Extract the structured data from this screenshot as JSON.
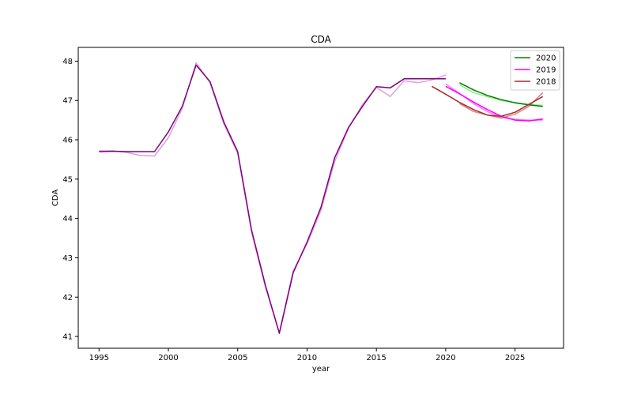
{
  "chart_data": {
    "type": "line",
    "title": "CDA",
    "xlabel": "year",
    "ylabel": "CDA",
    "xlim": [
      1993.5,
      2028.5
    ],
    "ylim": [
      40.7,
      48.35
    ],
    "xticks": [
      1995,
      2000,
      2005,
      2010,
      2015,
      2020,
      2025
    ],
    "yticks": [
      41,
      42,
      43,
      44,
      45,
      46,
      47,
      48
    ],
    "grid": false,
    "legend_position": "top-right",
    "series": [
      {
        "color": "#dda0dd",
        "x": [
          1995,
          1996,
          1997,
          1998,
          1999,
          2000,
          2001,
          2002,
          2003,
          2004,
          2005,
          2006,
          2007,
          2008,
          2009,
          2010,
          2011,
          2012,
          2013,
          2014,
          2015,
          2016,
          2017,
          2018,
          2019,
          2020
        ],
        "y": [
          45.72,
          45.72,
          45.68,
          45.6,
          45.59,
          46.05,
          46.8,
          47.96,
          47.45,
          46.4,
          45.66,
          43.65,
          42.25,
          41.1,
          42.67,
          43.35,
          44.2,
          45.45,
          46.3,
          46.9,
          47.33,
          47.1,
          47.5,
          47.45,
          47.52,
          47.65
        ]
      },
      {
        "color": "#800080",
        "x": [
          1995,
          1996,
          1997,
          1998,
          1999,
          2000,
          2001,
          2002,
          2003,
          2004,
          2005,
          2006,
          2007,
          2008,
          2009,
          2010,
          2011,
          2012,
          2013,
          2014,
          2015,
          2016,
          2017,
          2018,
          2019,
          2020
        ],
        "y": [
          45.7,
          45.71,
          45.7,
          45.7,
          45.7,
          46.2,
          46.85,
          47.9,
          47.48,
          46.45,
          45.7,
          43.7,
          42.3,
          41.08,
          42.62,
          43.4,
          44.28,
          45.55,
          46.32,
          46.85,
          47.35,
          47.32,
          47.55,
          47.55,
          47.55,
          47.55
        ]
      },
      {
        "color": "#90ee90",
        "x": [
          2021,
          2022,
          2023,
          2024,
          2025,
          2026,
          2027
        ],
        "y": [
          47.4,
          47.2,
          47.1,
          47.0,
          46.95,
          46.9,
          46.88
        ]
      },
      {
        "color": "#ff77ff",
        "x": [
          2020,
          2021,
          2022,
          2023,
          2024,
          2025,
          2026,
          2027
        ],
        "y": [
          47.42,
          47.18,
          46.92,
          46.72,
          46.57,
          46.52,
          46.5,
          46.5
        ]
      },
      {
        "color": "#e08080",
        "x": [
          2021,
          2022,
          2023,
          2024,
          2025,
          2026,
          2027
        ],
        "y": [
          46.92,
          46.72,
          46.63,
          46.55,
          46.65,
          46.85,
          47.2
        ]
      },
      {
        "name": "2020",
        "color": "#008000",
        "x": [
          2021,
          2022,
          2023,
          2024,
          2025,
          2026,
          2027
        ],
        "y": [
          47.45,
          47.27,
          47.13,
          47.02,
          46.94,
          46.89,
          46.85
        ]
      },
      {
        "name": "2019",
        "color": "#ff00ff",
        "x": [
          2020,
          2021,
          2022,
          2023,
          2024,
          2025,
          2026,
          2027
        ],
        "y": [
          47.36,
          47.17,
          46.96,
          46.77,
          46.6,
          46.5,
          46.48,
          46.53
        ]
      },
      {
        "name": "2018",
        "color": "#a52a2a",
        "x": [
          2019,
          2020,
          2021,
          2022,
          2023,
          2024,
          2025,
          2026,
          2027
        ],
        "y": [
          47.36,
          47.16,
          46.95,
          46.77,
          46.63,
          46.6,
          46.7,
          46.9,
          47.1
        ]
      }
    ],
    "legend": [
      {
        "label": "2020",
        "color": "#008000"
      },
      {
        "label": "2019",
        "color": "#ff00ff"
      },
      {
        "label": "2018",
        "color": "#a52a2a"
      }
    ]
  }
}
